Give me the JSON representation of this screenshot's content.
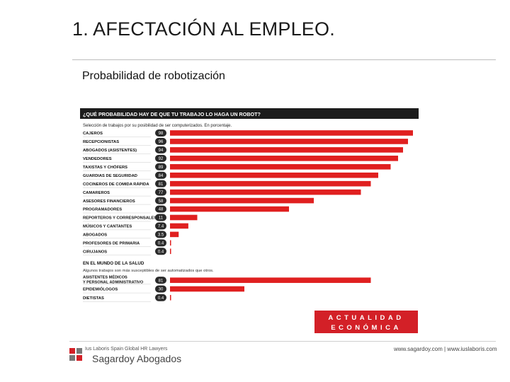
{
  "slide": {
    "title": "1. AFECTACIÓN AL EMPLEO.",
    "subtitle": "Probabilidad de robotización"
  },
  "footer": {
    "brand_small": "Ius Laboris Spain Global HR Lawyers",
    "brand_name": "Sagardoy Abogados",
    "links": "www.sagardoy.com  |  www.iuslaboris.com"
  },
  "colors": {
    "bar": "#e02020",
    "header_bg": "#1c1c1c",
    "badge": "#2a2a2a",
    "brand_red": "#d32027"
  },
  "chart_data": {
    "type": "bar",
    "orientation": "horizontal",
    "title": "¿QUÉ PROBABILIDAD HAY DE QUE TU TRABAJO LO HAGA UN ROBOT?",
    "subtitle": "Selección de trabajos por su posibilidad de ser computerizados. En porcentaje.",
    "xlim": [
      0,
      100
    ],
    "groups": [
      {
        "heading": "",
        "note": "",
        "categories": [
          "CAJEROS",
          "RECEPCIONISTAS",
          "ABOGADOS (ASISTENTES)",
          "VENDEDORES",
          "TAXISTAS Y CHÓFERS",
          "GUARDIAS DE SEGURIDAD",
          "COCINEROS DE COMIDA RÁPIDA",
          "CAMAREROS",
          "ASESORES FINANCIEROS",
          "PROGRAMADORES",
          "REPORTEROS Y CORRESPONSALES",
          "MÚSICOS Y CANTANTES",
          "ABOGADOS",
          "PROFESORES DE PRIMARIA",
          "CIRUJANOS"
        ],
        "values": [
          98,
          96,
          94,
          92,
          89,
          84,
          81,
          77,
          58,
          48,
          11,
          7.4,
          3.5,
          0.4,
          0.4
        ],
        "labels": [
          "98",
          "96",
          "94",
          "92",
          "89",
          "84",
          "81",
          "77",
          "58",
          "48",
          "11",
          "7.4",
          "3.5",
          "0.4",
          "0.4"
        ]
      },
      {
        "heading": "EN EL MUNDO DE LA SALUD",
        "note": "Algunos trabajos son más susceptibles de ser automatizados que otros.",
        "categories": [
          "ASISTENTES MÉDICOS Y PERSONAL ADMINISTRATIVO",
          "EPIDEMIÓLOGOS",
          "DIETISTAS"
        ],
        "values": [
          81,
          30,
          0.4
        ],
        "labels": [
          "81",
          "30",
          "0.4"
        ]
      }
    ],
    "source_banner": [
      "ACTUALIDAD",
      "ECONÓMICA"
    ]
  }
}
